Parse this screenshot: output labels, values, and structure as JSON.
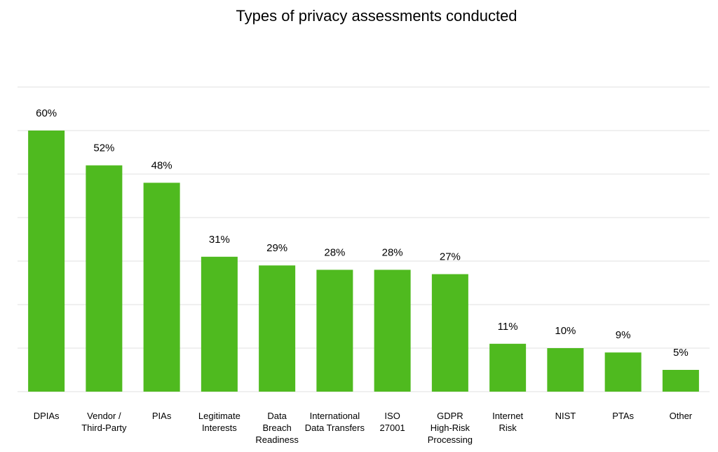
{
  "chart_data": {
    "type": "bar",
    "title": "Types of privacy assessments conducted",
    "categories": [
      "DPIAs",
      "Vendor  /\nThird-Party",
      "PIAs",
      "Legitimate\nInterests",
      "Data\nBreach\nReadiness",
      "International\nData Transfers",
      "ISO\n27001",
      "GDPR\nHigh-Risk\nProcessing",
      "Internet\nRisk",
      "NIST",
      "PTAs",
      "Other"
    ],
    "values": [
      60,
      52,
      48,
      31,
      29,
      28,
      28,
      27,
      11,
      10,
      9,
      5
    ],
    "value_labels": [
      "60%",
      "52%",
      "48%",
      "31%",
      "29%",
      "28%",
      "28%",
      "27%",
      "11%",
      "10%",
      "9%",
      "5%"
    ],
    "color": "#4fba1f",
    "ylim": [
      0,
      70
    ],
    "yticks": [
      0,
      10,
      20,
      30,
      40,
      50,
      60,
      70
    ],
    "grid": true
  }
}
